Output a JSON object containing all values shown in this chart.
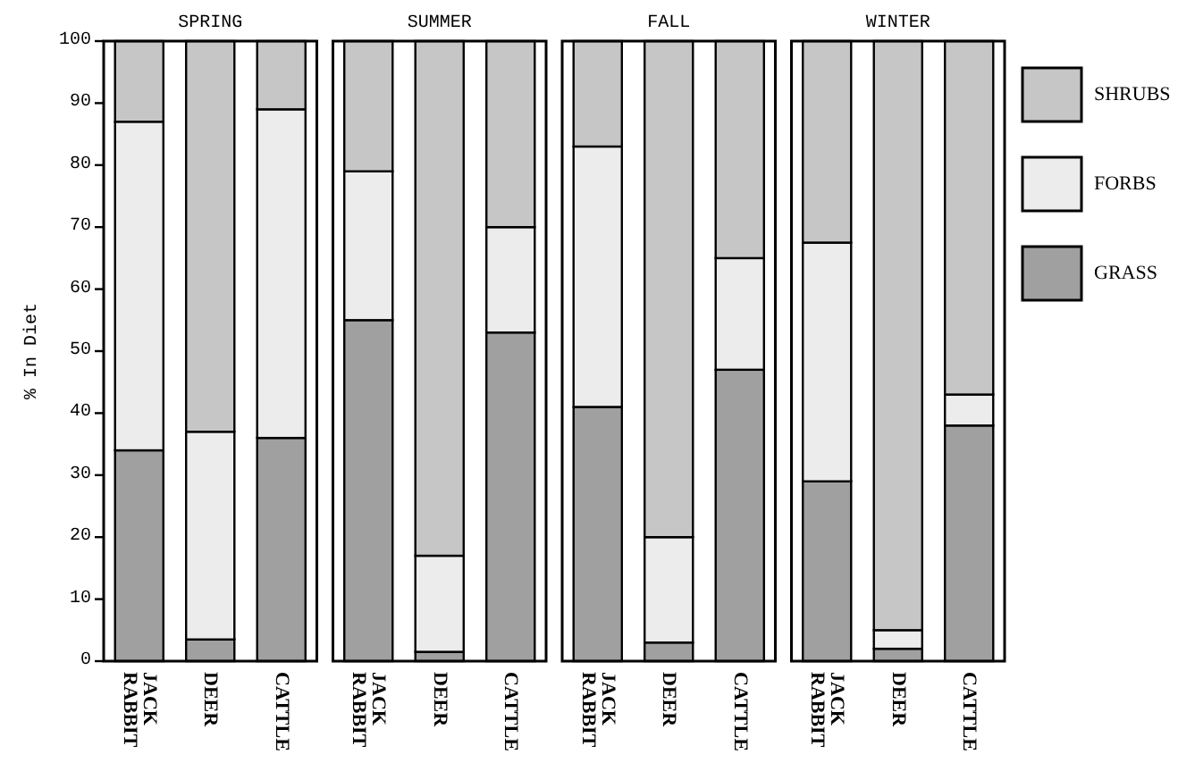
{
  "chart_data": [
    {
      "type": "bar",
      "stacked": true,
      "title": "SPRING",
      "ylabel": "% In Diet",
      "categories": [
        "JACK\nRABBIT",
        "DEER",
        "CATTLE"
      ],
      "ylim": [
        0,
        100
      ],
      "yticks": [
        0,
        10,
        20,
        30,
        40,
        50,
        60,
        70,
        80,
        90,
        100
      ],
      "legend": "right",
      "series": [
        {
          "name": "GRASS",
          "color": "#a0a0a0",
          "values": [
            34,
            3.5,
            36
          ]
        },
        {
          "name": "FORBS",
          "color": "#ececec",
          "values": [
            53,
            33.5,
            53
          ]
        },
        {
          "name": "SHRUBS",
          "color": "#c6c6c6",
          "values": [
            13,
            63,
            11
          ]
        }
      ]
    },
    {
      "type": "bar",
      "stacked": true,
      "title": "SUMMER",
      "categories": [
        "JACK\nRABBIT",
        "DEER",
        "CATTLE"
      ],
      "ylim": [
        0,
        100
      ],
      "tick_labels": "x",
      "series": [
        {
          "color": "#a0a0a0",
          "values": [
            55,
            1.5,
            53
          ]
        },
        {
          "color": "#ececec",
          "values": [
            24,
            15.5,
            17
          ]
        },
        {
          "color": "#c6c6c6",
          "values": [
            21,
            83,
            30
          ]
        }
      ]
    },
    {
      "type": "bar",
      "stacked": true,
      "title": "FALL",
      "categories": [
        "JACK\nRABBIT",
        "DEER",
        "CATTLE"
      ],
      "ylim": [
        0,
        100
      ],
      "tick_labels": "x",
      "series": [
        {
          "color": "#a0a0a0",
          "values": [
            41,
            3,
            47
          ]
        },
        {
          "color": "#ececec",
          "values": [
            42,
            17,
            18
          ]
        },
        {
          "color": "#c6c6c6",
          "values": [
            17,
            80,
            35
          ]
        }
      ]
    },
    {
      "type": "bar",
      "stacked": true,
      "title": "WINTER",
      "categories": [
        "JACK\nRABBIT",
        "DEER",
        "CATTLE"
      ],
      "ylim": [
        0,
        100
      ],
      "tick_labels": "x",
      "series": [
        {
          "color": "#a0a0a0",
          "values": [
            29,
            2,
            38
          ]
        },
        {
          "color": "#ececec",
          "values": [
            38.5,
            3,
            5
          ]
        },
        {
          "color": "#c6c6c6",
          "values": [
            32.5,
            95,
            57
          ]
        }
      ]
    }
  ]
}
